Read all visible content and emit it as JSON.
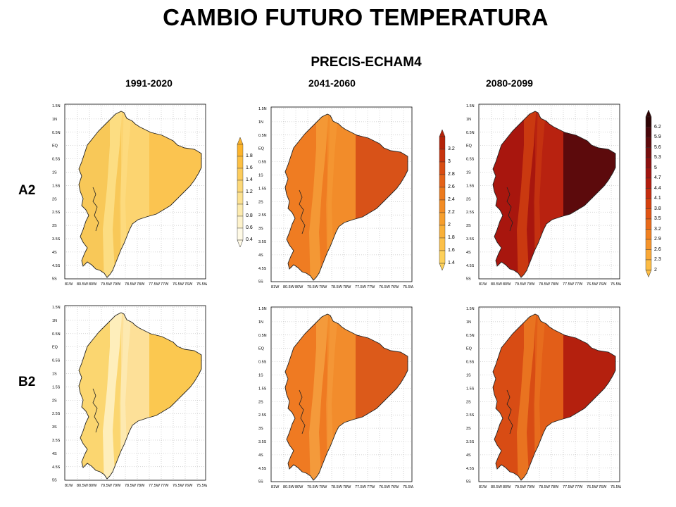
{
  "title": "CAMBIO FUTURO TEMPERATURA",
  "model": "PRECIS-ECHAM4",
  "periods": [
    "1991-2020",
    "2041-2060",
    "2080-2099"
  ],
  "scenarios": [
    "A2",
    "B2"
  ],
  "map_axes": {
    "lat_labels": [
      "1.5N",
      "1N",
      "0.5N",
      "EQ",
      "0.5S",
      "1S",
      "1.5S",
      "2S",
      "2.5S",
      "3S",
      "3.5S",
      "4S",
      "4.5S",
      "5S"
    ],
    "lon_labels": [
      "81W",
      "80.5W",
      "80W",
      "79.5W",
      "79W",
      "78.5W",
      "78W",
      "77.5W",
      "77W",
      "76.5W",
      "76W",
      "75.5W"
    ]
  },
  "colorbars": [
    {
      "id": "p1",
      "labels": [
        "1.8",
        "1.6",
        "1.4",
        "1.2",
        "1",
        "0.8",
        "0.6",
        "0.4"
      ],
      "colors": [
        "#fcb42c",
        "#fcc044",
        "#fccc5c",
        "#fcd878",
        "#fde292",
        "#fdebaf",
        "#fef3cc",
        "#fffae6"
      ]
    },
    {
      "id": "p2",
      "labels": [
        "3.2",
        "3",
        "2.8",
        "2.6",
        "2.4",
        "2.2",
        "2",
        "1.8",
        "1.6",
        "1.4"
      ],
      "colors": [
        "#b42208",
        "#c8340e",
        "#d84c12",
        "#e46218",
        "#ec7a1e",
        "#f28c24",
        "#f69e2c",
        "#f9b038",
        "#fcc048",
        "#fdd05a"
      ]
    },
    {
      "id": "p3",
      "labels": [
        "6.2",
        "5.9",
        "5.6",
        "5.3",
        "5",
        "4.7",
        "4.4",
        "4.1",
        "3.8",
        "3.5",
        "3.2",
        "2.9",
        "2.6",
        "2.3",
        "2"
      ],
      "colors": [
        "#2e0404",
        "#48060a",
        "#5e0a0c",
        "#760e0e",
        "#8c1010",
        "#a01410",
        "#b21c0e",
        "#c42c0e",
        "#d4400e",
        "#e05414",
        "#e86a1a",
        "#f08020",
        "#f5942a",
        "#f9a836",
        "#fcbc44"
      ]
    }
  ],
  "maps": [
    {
      "id": "a2-1991-2020",
      "scenario": "A2",
      "period": "1991-2020",
      "colors": {
        "west": "#f8c858",
        "mid": "#fcd470",
        "east": "#fbc450",
        "andes": "#fde08a"
      }
    },
    {
      "id": "a2-2041-2060",
      "scenario": "A2",
      "period": "2041-2060",
      "colors": {
        "west": "#ef7c22",
        "mid": "#f28c2a",
        "east": "#d85218",
        "andes": "#f59e38"
      }
    },
    {
      "id": "a2-2080-2099",
      "scenario": "A2",
      "period": "2080-2099",
      "colors": {
        "west": "#a8160e",
        "mid": "#b82210",
        "east": "#5c0a0c",
        "andes": "#d04010"
      }
    },
    {
      "id": "b2-1991-2020",
      "scenario": "B2",
      "period": "1991-2020",
      "colors": {
        "west": "#fbd670",
        "mid": "#fde098",
        "east": "#fbc850",
        "andes": "#fef2c8"
      }
    },
    {
      "id": "b2-2041-2060",
      "scenario": "B2",
      "period": "2041-2060",
      "colors": {
        "west": "#ef7a22",
        "mid": "#f28c2c",
        "east": "#dc5a1a",
        "andes": "#f5a040"
      }
    },
    {
      "id": "b2-2080-2099",
      "scenario": "B2",
      "period": "2080-2099",
      "colors": {
        "west": "#d84c14",
        "mid": "#e25e18",
        "east": "#b4200e",
        "andes": "#ec7a22"
      }
    }
  ]
}
